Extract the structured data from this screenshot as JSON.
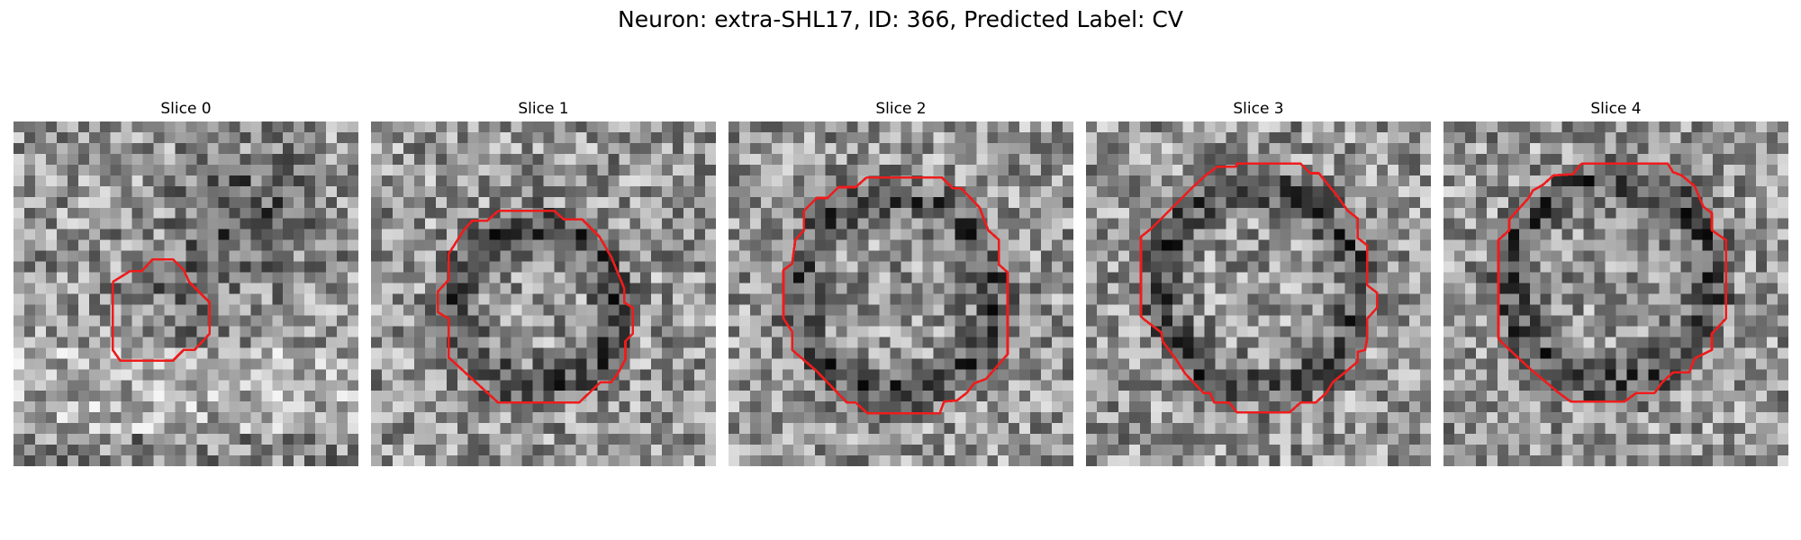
{
  "figure": {
    "title": "Neuron: extra-SHL17, ID: 366, Predicted Label: CV",
    "contour_color": "#ee1c1c"
  },
  "slices": [
    {
      "label": "Slice 0",
      "seed": 11,
      "dark_ring": false
    },
    {
      "label": "Slice 1",
      "seed": 23,
      "dark_ring": true
    },
    {
      "label": "Slice 2",
      "seed": 37,
      "dark_ring": true
    },
    {
      "label": "Slice 3",
      "seed": 41,
      "dark_ring": true
    },
    {
      "label": "Slice 4",
      "seed": 53,
      "dark_ring": true
    }
  ]
}
